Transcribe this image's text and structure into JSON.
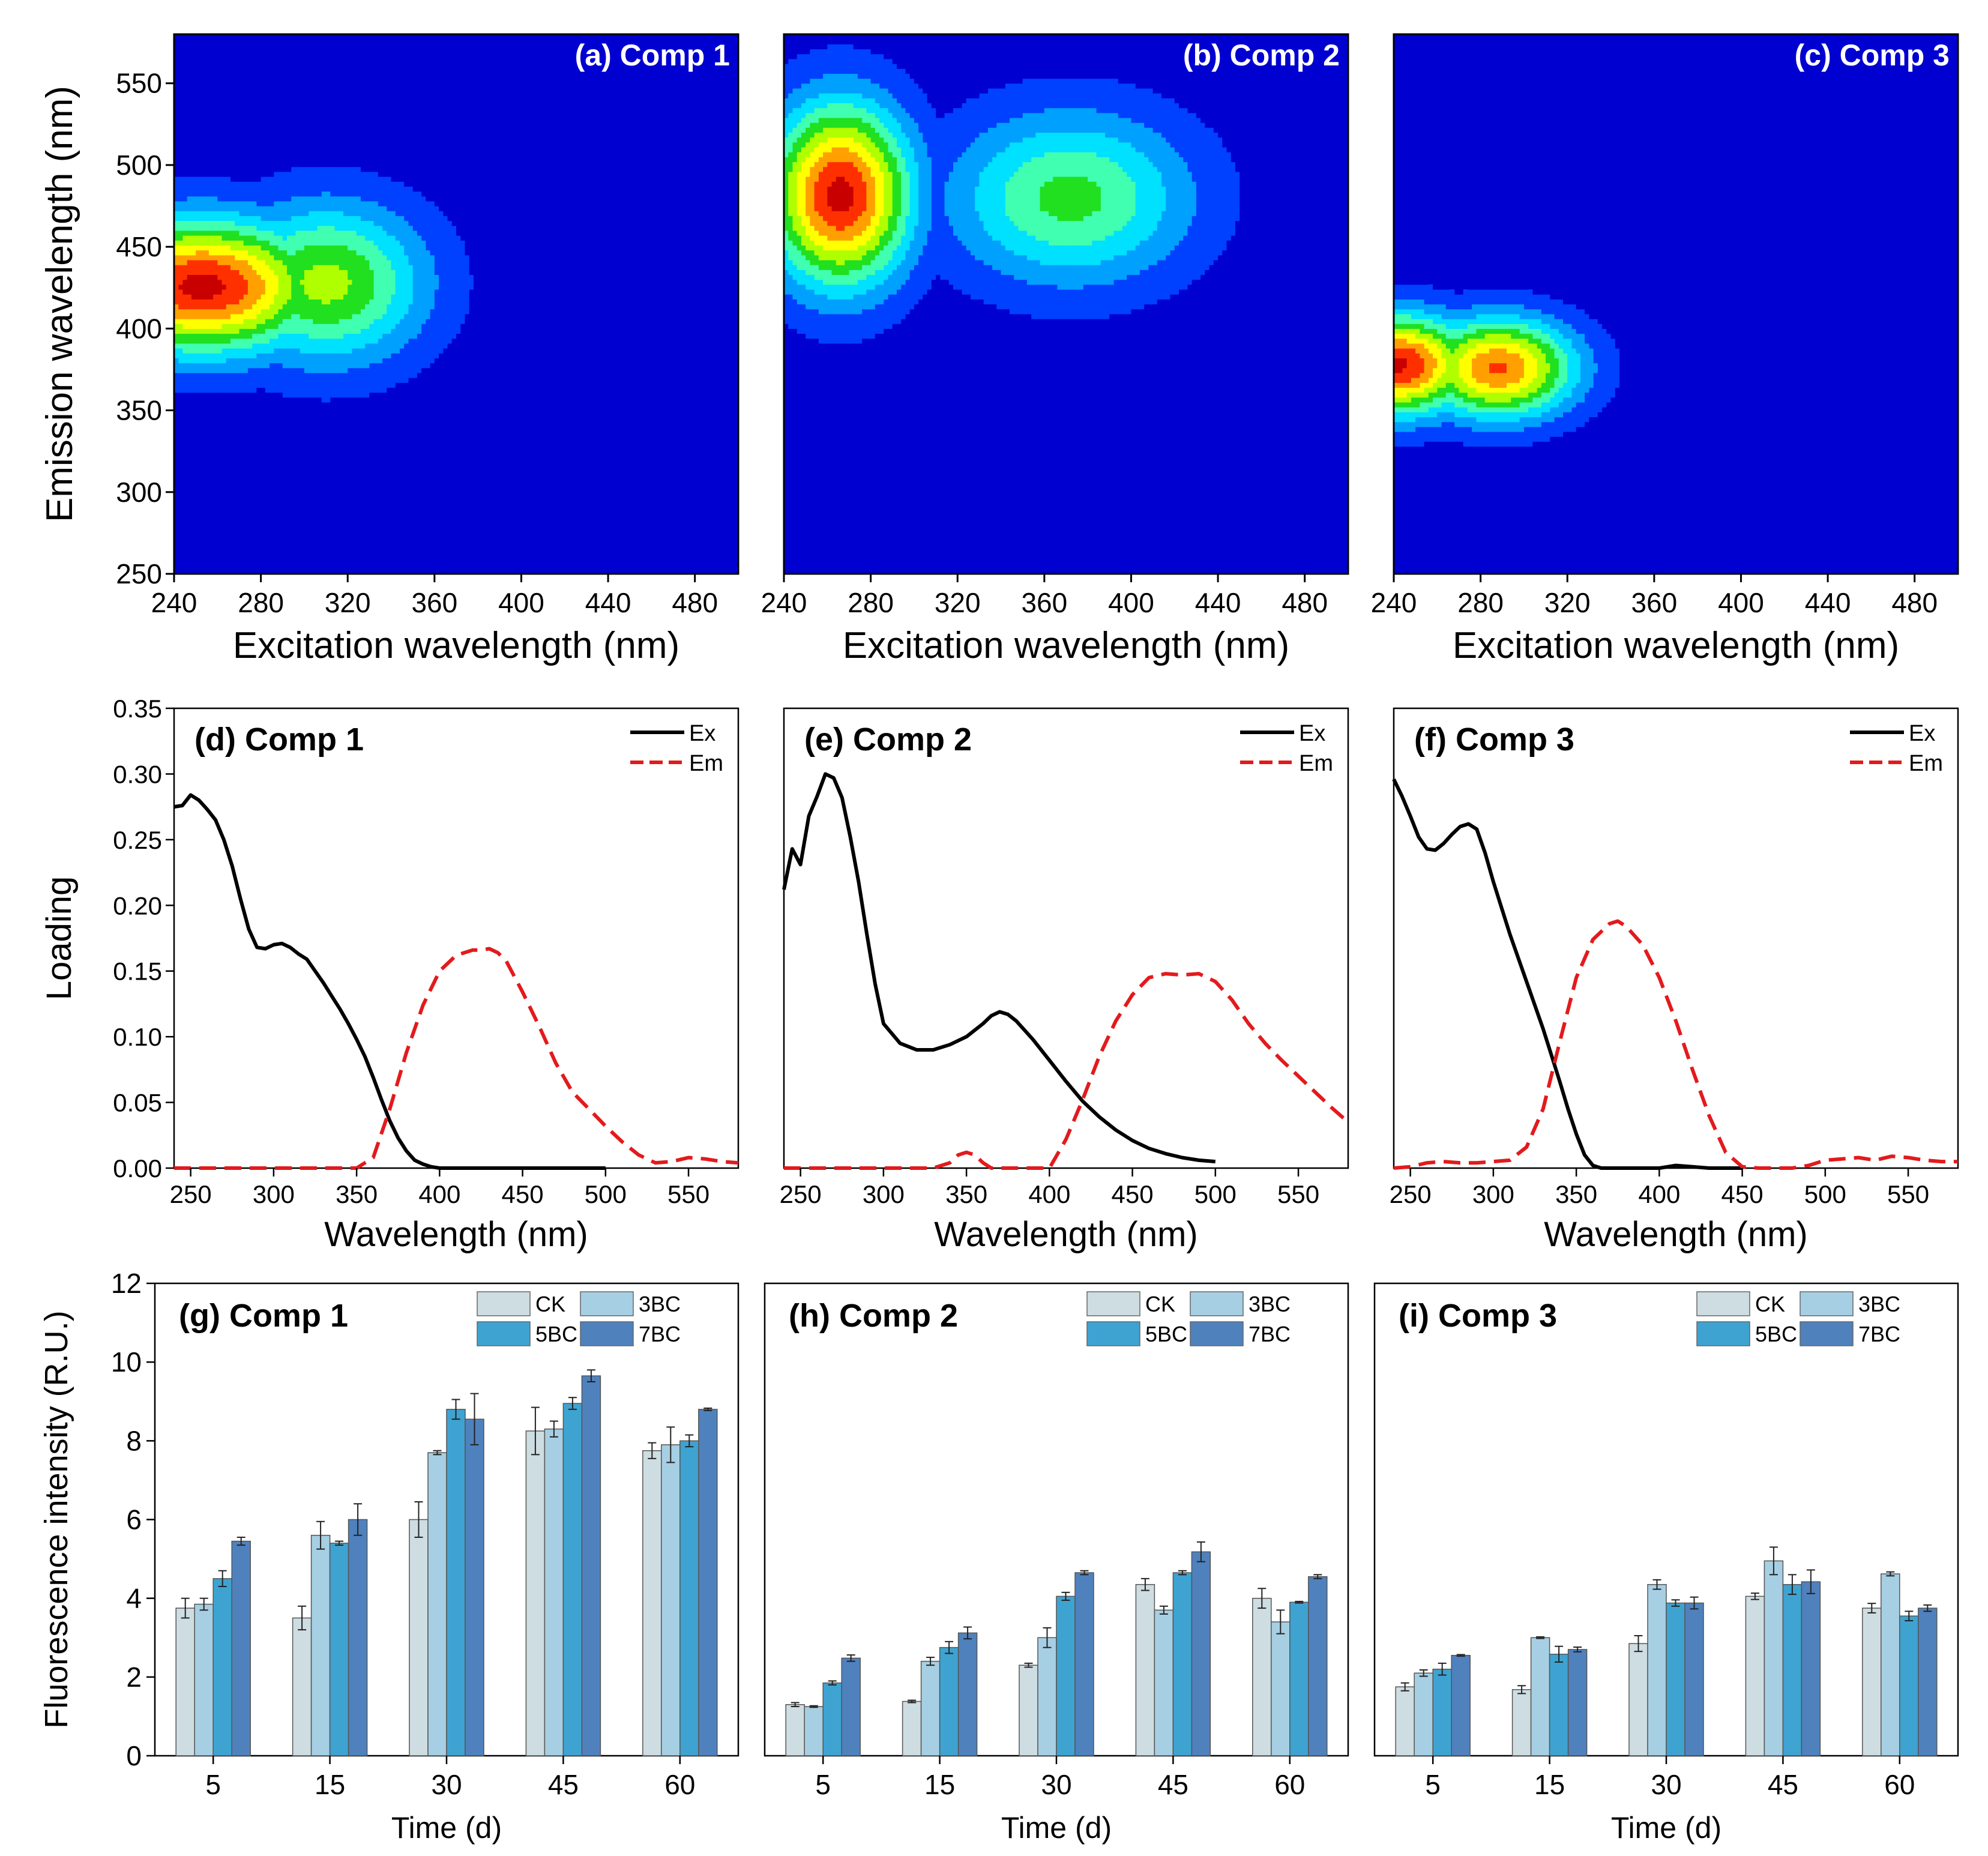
{
  "colors": {
    "ex_line": "#000000",
    "em_line": "#e31a1c",
    "bar_CK": "#cddde1",
    "bar_3BC": "#a6cfe3",
    "bar_5BC": "#3ea3d1",
    "bar_7BC": "#4f81bd",
    "contour_background": "#0000d0",
    "contour_ramp": [
      "#0000d0",
      "#0040ff",
      "#00a0ff",
      "#00e0ff",
      "#40ffb0",
      "#20e020",
      "#b0ff00",
      "#ffff00",
      "#ffa000",
      "#ff3000",
      "#c80000"
    ]
  },
  "chart_data": [
    {
      "panel": "a",
      "type": "heatmap",
      "title": "(a) Comp 1",
      "xlabel": "Excitation wavelength (nm)",
      "ylabel": "Emission wavelength (nm)",
      "xlim": [
        240,
        500
      ],
      "ylim": [
        250,
        580
      ],
      "xticks": [
        240,
        280,
        320,
        360,
        400,
        440,
        480
      ],
      "yticks": [
        250,
        300,
        350,
        400,
        450,
        500,
        550
      ],
      "peaks": [
        {
          "ex": 253,
          "em": 426,
          "intensity": 1.0,
          "ex_width": 55,
          "em_width": 40
        },
        {
          "ex": 310,
          "em": 428,
          "intensity": 0.6,
          "ex_width": 45,
          "em_width": 48
        }
      ]
    },
    {
      "panel": "b",
      "type": "heatmap",
      "title": "(b) Comp 2",
      "xlabel": "Excitation wavelength (nm)",
      "ylabel": "",
      "xlim": [
        240,
        500
      ],
      "ylim": [
        250,
        580
      ],
      "xticks": [
        240,
        280,
        320,
        360,
        400,
        440,
        480
      ],
      "yticks": [],
      "peaks": [
        {
          "ex": 266,
          "em": 482,
          "intensity": 1.0,
          "ex_width": 32,
          "em_width": 55
        },
        {
          "ex": 372,
          "em": 480,
          "intensity": 0.5,
          "ex_width": 55,
          "em_width": 52
        }
      ]
    },
    {
      "panel": "c",
      "type": "heatmap",
      "title": "(c) Comp 3",
      "xlabel": "Excitation wavelength (nm)",
      "ylabel": "",
      "xlim": [
        240,
        500
      ],
      "ylim": [
        250,
        580
      ],
      "xticks": [
        240,
        280,
        320,
        360,
        400,
        440,
        480
      ],
      "yticks": [],
      "peaks": [
        {
          "ex": 242,
          "em": 378,
          "intensity": 0.98,
          "ex_width": 35,
          "em_width": 30
        },
        {
          "ex": 288,
          "em": 376,
          "intensity": 0.88,
          "ex_width": 35,
          "em_width": 30
        }
      ]
    },
    {
      "panel": "d",
      "type": "line",
      "title": "(d) Comp 1",
      "xlabel": "Wavelength (nm)",
      "ylabel": "Loading",
      "xlim": [
        240,
        580
      ],
      "ylim": [
        0,
        0.35
      ],
      "xticks": [
        250,
        300,
        350,
        400,
        450,
        500,
        550
      ],
      "yticks": [
        "0.00",
        "0.05",
        "0.10",
        "0.15",
        "0.20",
        "0.25",
        "0.30",
        "0.35"
      ],
      "legend": "top-right",
      "series": [
        {
          "name": "Ex",
          "style": "solid",
          "x": [
            240,
            245,
            250,
            255,
            260,
            265,
            270,
            275,
            280,
            285,
            290,
            295,
            300,
            305,
            310,
            315,
            320,
            325,
            330,
            335,
            340,
            345,
            350,
            355,
            360,
            365,
            370,
            375,
            380,
            385,
            390,
            395,
            400,
            405,
            410,
            415,
            420,
            450,
            500
          ],
          "y": [
            0.275,
            0.276,
            0.284,
            0.28,
            0.273,
            0.265,
            0.25,
            0.23,
            0.205,
            0.182,
            0.168,
            0.167,
            0.17,
            0.171,
            0.168,
            0.163,
            0.159,
            0.15,
            0.141,
            0.131,
            0.121,
            0.11,
            0.098,
            0.085,
            0.069,
            0.052,
            0.036,
            0.023,
            0.013,
            0.006,
            0.003,
            0.001,
            0.0,
            0.0,
            0.0,
            0.0,
            0.0,
            0.0,
            0.0
          ]
        },
        {
          "name": "Em",
          "style": "dashed",
          "x": [
            240,
            300,
            350,
            360,
            370,
            380,
            390,
            400,
            410,
            420,
            425,
            430,
            435,
            440,
            450,
            460,
            470,
            480,
            490,
            500,
            510,
            520,
            530,
            540,
            550,
            560,
            570,
            580
          ],
          "y": [
            0.0,
            0.0,
            0.0,
            0.008,
            0.045,
            0.088,
            0.124,
            0.15,
            0.162,
            0.166,
            0.166,
            0.167,
            0.164,
            0.158,
            0.134,
            0.108,
            0.08,
            0.058,
            0.045,
            0.032,
            0.02,
            0.01,
            0.004,
            0.005,
            0.008,
            0.007,
            0.005,
            0.004
          ]
        }
      ]
    },
    {
      "panel": "e",
      "type": "line",
      "title": "(e) Comp 2",
      "xlabel": "Wavelength (nm)",
      "ylabel": "",
      "xlim": [
        240,
        580
      ],
      "ylim": [
        0,
        0.35
      ],
      "xticks": [
        250,
        300,
        350,
        400,
        450,
        500,
        550
      ],
      "yticks": [],
      "legend": "top-right",
      "series": [
        {
          "name": "Ex",
          "style": "solid",
          "x": [
            240,
            245,
            250,
            255,
            260,
            265,
            270,
            275,
            280,
            285,
            290,
            295,
            300,
            310,
            320,
            330,
            340,
            350,
            360,
            365,
            370,
            375,
            380,
            390,
            400,
            410,
            420,
            430,
            440,
            450,
            460,
            470,
            480,
            490,
            500
          ],
          "y": [
            0.212,
            0.243,
            0.231,
            0.268,
            0.283,
            0.3,
            0.297,
            0.282,
            0.252,
            0.218,
            0.178,
            0.14,
            0.11,
            0.095,
            0.09,
            0.09,
            0.094,
            0.1,
            0.11,
            0.116,
            0.119,
            0.117,
            0.112,
            0.098,
            0.082,
            0.066,
            0.051,
            0.039,
            0.029,
            0.021,
            0.015,
            0.011,
            0.008,
            0.006,
            0.005
          ]
        },
        {
          "name": "Em",
          "style": "dashed",
          "x": [
            240,
            300,
            330,
            340,
            345,
            350,
            355,
            360,
            365,
            370,
            380,
            400,
            410,
            420,
            430,
            440,
            450,
            460,
            470,
            480,
            490,
            500,
            510,
            520,
            530,
            540,
            550,
            560,
            570,
            580
          ],
          "y": [
            0.0,
            0.0,
            0.0,
            0.004,
            0.01,
            0.012,
            0.01,
            0.004,
            0.0,
            0.0,
            0.0,
            0.0,
            0.022,
            0.052,
            0.085,
            0.112,
            0.132,
            0.145,
            0.148,
            0.147,
            0.148,
            0.142,
            0.128,
            0.11,
            0.095,
            0.082,
            0.07,
            0.058,
            0.046,
            0.035
          ]
        }
      ]
    },
    {
      "panel": "f",
      "type": "line",
      "title": "(f) Comp 3",
      "xlabel": "Wavelength (nm)",
      "ylabel": "",
      "xlim": [
        240,
        580
      ],
      "ylim": [
        0,
        0.35
      ],
      "xticks": [
        250,
        300,
        350,
        400,
        450,
        500,
        550
      ],
      "yticks": [],
      "legend": "top-right",
      "series": [
        {
          "name": "Ex",
          "style": "solid",
          "x": [
            240,
            245,
            250,
            255,
            260,
            265,
            270,
            275,
            280,
            285,
            290,
            295,
            300,
            310,
            320,
            330,
            340,
            345,
            350,
            355,
            360,
            365,
            370,
            400,
            410,
            420,
            430,
            450
          ],
          "y": [
            0.296,
            0.283,
            0.268,
            0.252,
            0.243,
            0.242,
            0.247,
            0.254,
            0.26,
            0.262,
            0.258,
            0.24,
            0.218,
            0.178,
            0.142,
            0.106,
            0.066,
            0.045,
            0.026,
            0.01,
            0.002,
            0.0,
            0.0,
            0.0,
            0.002,
            0.001,
            0.0,
            0.0
          ]
        },
        {
          "name": "Em",
          "style": "dashed",
          "x": [
            240,
            250,
            260,
            270,
            280,
            290,
            300,
            310,
            320,
            330,
            340,
            350,
            360,
            370,
            375,
            380,
            390,
            400,
            410,
            420,
            430,
            440,
            450,
            460,
            480,
            490,
            500,
            510,
            520,
            530,
            540,
            550,
            560,
            570,
            580
          ],
          "y": [
            0.0,
            0.001,
            0.004,
            0.005,
            0.004,
            0.004,
            0.005,
            0.006,
            0.016,
            0.045,
            0.096,
            0.145,
            0.174,
            0.186,
            0.188,
            0.184,
            0.17,
            0.145,
            0.112,
            0.075,
            0.04,
            0.012,
            0.001,
            0.0,
            0.0,
            0.002,
            0.006,
            0.007,
            0.008,
            0.006,
            0.009,
            0.008,
            0.006,
            0.005,
            0.005
          ]
        }
      ]
    },
    {
      "panel": "g",
      "type": "bar",
      "title": "(g) Comp 1",
      "xlabel": "Time (d)",
      "ylabel": "Fluorescence intensity (R.U.)",
      "ylim": [
        0,
        12
      ],
      "yticks": [
        0,
        2,
        4,
        6,
        8,
        10,
        12
      ],
      "categories": [
        "5",
        "15",
        "30",
        "45",
        "60"
      ],
      "legend": "top-right",
      "series": [
        {
          "name": "CK",
          "values": [
            3.75,
            3.5,
            6.0,
            8.25,
            7.75
          ],
          "errors": [
            0.25,
            0.3,
            0.45,
            0.6,
            0.2
          ]
        },
        {
          "name": "3BC",
          "values": [
            3.85,
            5.6,
            7.7,
            8.3,
            7.9
          ],
          "errors": [
            0.15,
            0.35,
            0.05,
            0.2,
            0.45
          ]
        },
        {
          "name": "5BC",
          "values": [
            4.5,
            5.4,
            8.8,
            8.95,
            8.0
          ],
          "errors": [
            0.2,
            0.05,
            0.25,
            0.15,
            0.15
          ]
        },
        {
          "name": "7BC",
          "values": [
            5.45,
            6.0,
            8.55,
            9.65,
            8.8
          ],
          "errors": [
            0.1,
            0.4,
            0.65,
            0.15,
            0.03
          ]
        }
      ]
    },
    {
      "panel": "h",
      "type": "bar",
      "title": "(h) Comp 2",
      "xlabel": "Time (d)",
      "ylabel": "",
      "ylim": [
        0,
        12
      ],
      "yticks": [],
      "categories": [
        "5",
        "15",
        "30",
        "45",
        "60"
      ],
      "legend": "top-right",
      "series": [
        {
          "name": "CK",
          "values": [
            1.3,
            1.38,
            2.3,
            4.35,
            4.0
          ],
          "errors": [
            0.05,
            0.03,
            0.05,
            0.15,
            0.25
          ]
        },
        {
          "name": "3BC",
          "values": [
            1.25,
            2.4,
            3.0,
            3.7,
            3.4
          ],
          "errors": [
            0.02,
            0.1,
            0.25,
            0.1,
            0.3
          ]
        },
        {
          "name": "5BC",
          "values": [
            1.85,
            2.75,
            4.05,
            4.65,
            3.9
          ],
          "errors": [
            0.05,
            0.15,
            0.1,
            0.05,
            0.02
          ]
        },
        {
          "name": "7BC",
          "values": [
            2.48,
            3.12,
            4.65,
            5.18,
            4.55
          ],
          "errors": [
            0.08,
            0.15,
            0.05,
            0.25,
            0.05
          ]
        }
      ]
    },
    {
      "panel": "i",
      "type": "bar",
      "title": "(i) Comp 3",
      "xlabel": "Time (d)",
      "ylabel": "",
      "ylim": [
        0,
        12
      ],
      "yticks": [],
      "categories": [
        "5",
        "15",
        "30",
        "45",
        "60"
      ],
      "legend": "top-right",
      "series": [
        {
          "name": "CK",
          "values": [
            1.75,
            1.68,
            2.85,
            4.05,
            3.75
          ],
          "errors": [
            0.1,
            0.1,
            0.2,
            0.08,
            0.12
          ]
        },
        {
          "name": "3BC",
          "values": [
            2.1,
            3.0,
            4.35,
            4.95,
            4.62
          ],
          "errors": [
            0.08,
            0.02,
            0.12,
            0.35,
            0.05
          ]
        },
        {
          "name": "5BC",
          "values": [
            2.2,
            2.58,
            3.88,
            4.35,
            3.55
          ],
          "errors": [
            0.15,
            0.2,
            0.08,
            0.25,
            0.12
          ]
        },
        {
          "name": "7BC",
          "values": [
            2.55,
            2.7,
            3.88,
            4.42,
            3.75
          ],
          "errors": [
            0.02,
            0.06,
            0.15,
            0.3,
            0.08
          ]
        }
      ]
    }
  ]
}
